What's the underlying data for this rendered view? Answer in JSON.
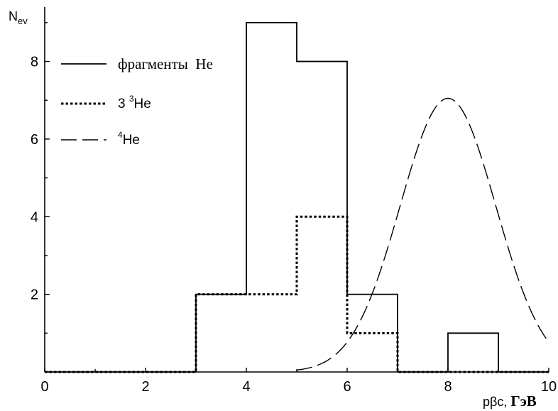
{
  "chart_data": {
    "type": "histogram",
    "ylabel": "N",
    "ylabel_subscript": "ev",
    "xlabel_prefix": "pβc, ",
    "xlabel_unit": "ГэВ",
    "xlim": [
      0,
      10
    ],
    "ylim": [
      0,
      9.4
    ],
    "x_ticks": [
      0,
      2,
      4,
      6,
      8,
      10
    ],
    "y_ticks": [
      2,
      4,
      6,
      8
    ],
    "bin_edges": [
      0,
      1,
      2,
      3,
      4,
      5,
      6,
      7,
      8,
      9,
      10
    ],
    "series": [
      {
        "name": "фрагменты He",
        "style": "solid",
        "counts": [
          0,
          0,
          0,
          2,
          9,
          8,
          2,
          0,
          1,
          0
        ]
      },
      {
        "name": "3 ³He",
        "style": "dotted",
        "counts": [
          0,
          0,
          0,
          2,
          2,
          4,
          1,
          0,
          0,
          0
        ]
      }
    ],
    "curve": {
      "name": "⁴He",
      "style": "dashed",
      "type": "gaussian",
      "peak_x": 8.0,
      "peak_y": 7.05,
      "sigma": 0.95,
      "x_range": [
        5.0,
        10.0
      ]
    },
    "legend": {
      "placement": "top-left",
      "items": [
        {
          "label_main": "фрагменты  He",
          "label_sup": "",
          "style": "solid"
        },
        {
          "label_main": "He",
          "label_pre": "3 ",
          "label_sup": "3",
          "style": "dotted"
        },
        {
          "label_main": "He",
          "label_pre": "",
          "label_sup": "4",
          "style": "dashed"
        }
      ]
    },
    "colors": {
      "line": "#000000",
      "background": "#ffffff"
    }
  }
}
